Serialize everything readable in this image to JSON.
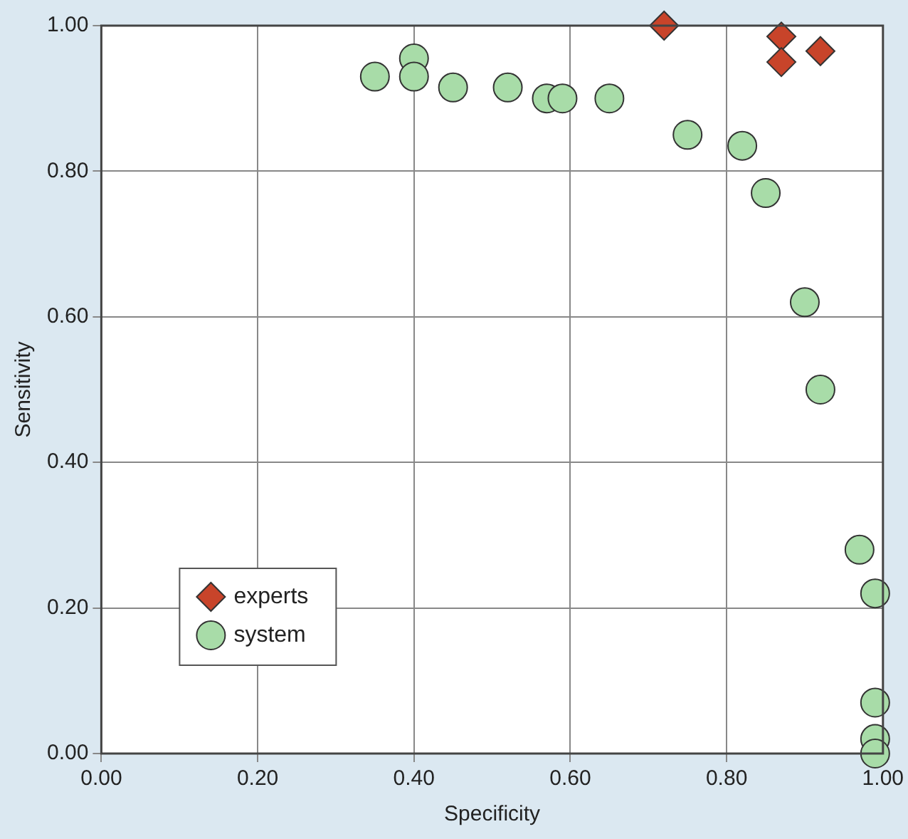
{
  "chart_data": {
    "type": "scatter",
    "xlabel": "Specificity",
    "ylabel": "Sensitivity",
    "xlim": [
      0,
      1
    ],
    "ylim": [
      0,
      1
    ],
    "xticks": [
      {
        "value": 0,
        "label": "0.00"
      },
      {
        "value": 0.2,
        "label": "0.20"
      },
      {
        "value": 0.4,
        "label": "0.40"
      },
      {
        "value": 0.6,
        "label": "0.60"
      },
      {
        "value": 0.8,
        "label": "0.80"
      },
      {
        "value": 1,
        "label": "1.00"
      }
    ],
    "yticks": [
      {
        "value": 0,
        "label": "0.00"
      },
      {
        "value": 0.2,
        "label": "0.20"
      },
      {
        "value": 0.4,
        "label": "0.40"
      },
      {
        "value": 0.6,
        "label": "0.60"
      },
      {
        "value": 0.8,
        "label": "0.80"
      },
      {
        "value": 1,
        "label": "1.00"
      }
    ],
    "grid": true,
    "legend": "bottom left",
    "series": [
      {
        "name": "experts",
        "color": "#c8442a",
        "marker": "diamond",
        "x": [
          0.72,
          0.87,
          0.87,
          0.92
        ],
        "values": [
          1.0,
          0.985,
          0.95,
          0.965
        ]
      },
      {
        "name": "system",
        "color": "#a8dca8",
        "marker": "circle",
        "x": [
          0.35,
          0.4,
          0.4,
          0.45,
          0.52,
          0.57,
          0.59,
          0.65,
          0.75,
          0.82,
          0.85,
          0.9,
          0.92,
          0.97,
          0.99,
          0.99,
          0.99,
          0.99
        ],
        "values": [
          0.93,
          0.955,
          0.93,
          0.915,
          0.915,
          0.9,
          0.9,
          0.9,
          0.85,
          0.835,
          0.77,
          0.62,
          0.5,
          0.28,
          0.22,
          0.07,
          0.02,
          0.0
        ]
      }
    ]
  }
}
